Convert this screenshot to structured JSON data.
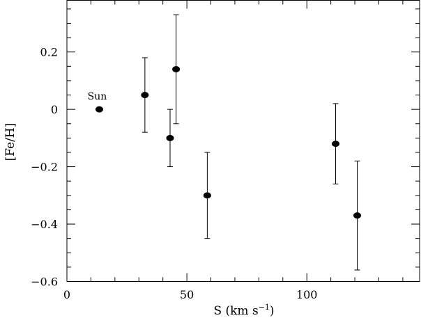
{
  "chart_data": {
    "type": "scatter",
    "xlabel": "S (km s",
    "xlabel_sup": "−1",
    "xlabel_close": ")",
    "ylabel": "[Fe/H]",
    "xlim": [
      0,
      147
    ],
    "ylim": [
      -0.6,
      0.38
    ],
    "x_ticks": [
      {
        "value": 0,
        "label": "0"
      },
      {
        "value": 50,
        "label": "50"
      },
      {
        "value": 100,
        "label": "100"
      }
    ],
    "y_ticks": [
      {
        "value": 0.2,
        "label": "0.2"
      },
      {
        "value": 0,
        "label": "0"
      },
      {
        "value": -0.2,
        "label": "−0.2"
      },
      {
        "value": -0.4,
        "label": "−0.4"
      },
      {
        "value": -0.6,
        "label": "−0.6"
      }
    ],
    "points": [
      {
        "x": 13.5,
        "y": 0.0,
        "label": "Sun"
      },
      {
        "x": 32.5,
        "y": 0.05,
        "yerr_low": -0.08,
        "yerr_high": 0.18
      },
      {
        "x": 43.0,
        "y": -0.1,
        "yerr_low": -0.2,
        "yerr_high": 0.0
      },
      {
        "x": 45.5,
        "y": 0.14,
        "yerr_low": -0.05,
        "yerr_high": 0.33
      },
      {
        "x": 58.5,
        "y": -0.3,
        "yerr_low": -0.45,
        "yerr_high": -0.15
      },
      {
        "x": 112.0,
        "y": -0.12,
        "yerr_low": -0.26,
        "yerr_high": 0.02
      },
      {
        "x": 121.0,
        "y": -0.37,
        "yerr_low": -0.56,
        "yerr_high": -0.18
      }
    ]
  }
}
